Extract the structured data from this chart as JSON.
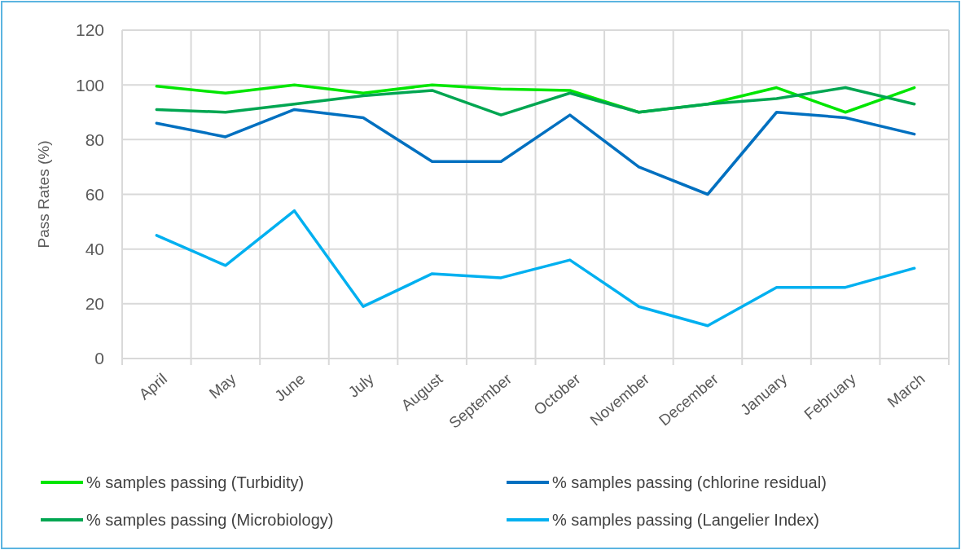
{
  "chart_data": {
    "type": "line",
    "ylabel": "Pass Rates (%)",
    "categories": [
      "April",
      "May",
      "June",
      "July",
      "August",
      "September",
      "October",
      "November",
      "December",
      "January",
      "February",
      "March"
    ],
    "series": [
      {
        "name": "% samples passing (Turbidity)",
        "color": "#00e600",
        "values": [
          99.5,
          97,
          100,
          97,
          100,
          98.5,
          98,
          90,
          93,
          99,
          90,
          99
        ]
      },
      {
        "name": "% samples passing (chlorine residual)",
        "color": "#0070c0",
        "values": [
          86,
          81,
          91,
          88,
          72,
          72,
          89,
          70,
          60,
          90,
          88,
          82
        ]
      },
      {
        "name": "% samples passing (Microbiology)",
        "color": "#00a651",
        "values": [
          91,
          90,
          93,
          96,
          98,
          89,
          97,
          90,
          93,
          95,
          99,
          93
        ]
      },
      {
        "name": "% samples passing (Langelier Index)",
        "color": "#00b0f0",
        "values": [
          45,
          34,
          54,
          19,
          31,
          29.5,
          36,
          19,
          12,
          26,
          26,
          33
        ]
      }
    ],
    "ylim": [
      0,
      120
    ],
    "yticks": [
      0,
      20,
      40,
      60,
      80,
      100,
      120
    ],
    "grid": true,
    "legend": "bottom",
    "marker": "none",
    "line_style": "solid"
  }
}
